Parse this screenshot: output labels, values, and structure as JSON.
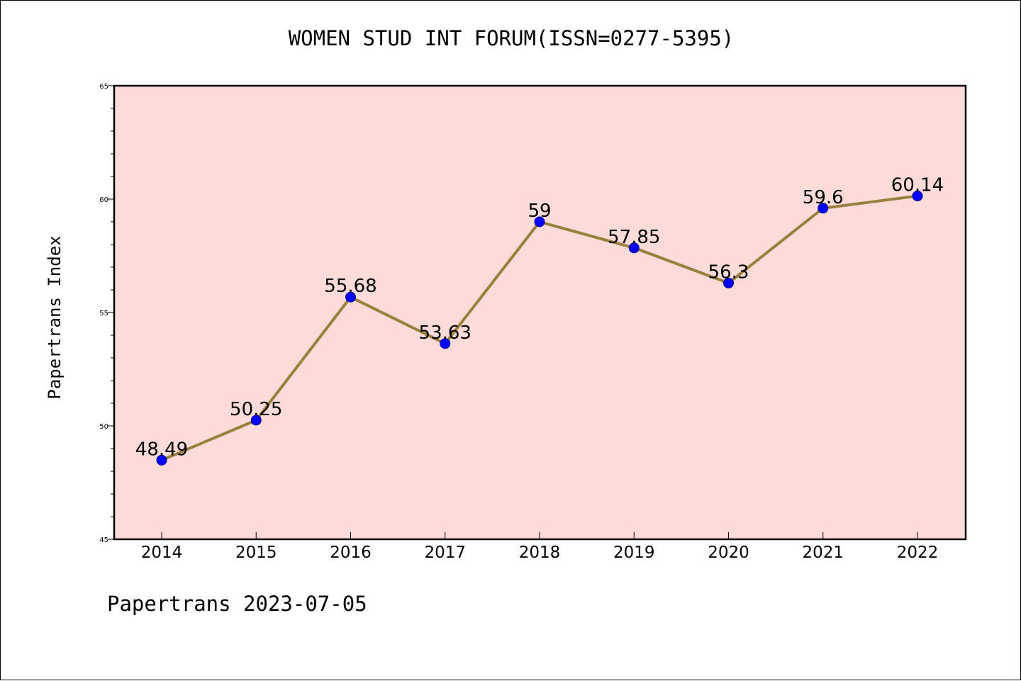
{
  "chart_data": {
    "type": "line",
    "title": "WOMEN STUD INT FORUM(ISSN=0277-5395)",
    "xlabel": "",
    "ylabel": "Papertrans Index",
    "categories": [
      "2014",
      "2015",
      "2016",
      "2017",
      "2018",
      "2019",
      "2020",
      "2021",
      "2022"
    ],
    "values": [
      48.49,
      50.25,
      55.68,
      53.63,
      59,
      57.85,
      56.3,
      59.6,
      60.14
    ],
    "data_labels": [
      "48.49",
      "50.25",
      "55.68",
      "53.63",
      "59",
      "57.85",
      "56.3",
      "59.6",
      "60.14"
    ],
    "ylim": [
      45,
      65
    ],
    "yticks": [
      "45",
      "50",
      "55",
      "60",
      "65"
    ],
    "grid": false,
    "legend": "none",
    "colors": {
      "plot_background": "#fddbd8",
      "line": "#9b7f3c",
      "marker": "#0000ff",
      "marker_edge": "#00008b"
    }
  },
  "footer": "Papertrans 2023-07-05"
}
